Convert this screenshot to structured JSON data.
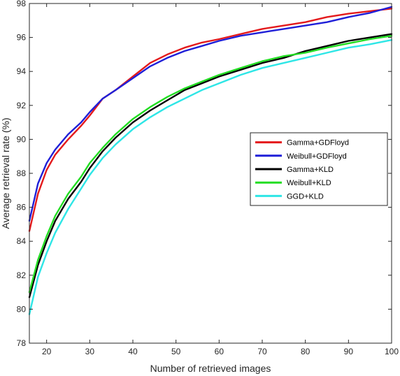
{
  "chart_data": {
    "type": "line",
    "title": "",
    "xlabel": "Number of retrieved images",
    "ylabel": "Average retrieval rate (%)",
    "xlim": [
      16,
      100
    ],
    "ylim": [
      78,
      98
    ],
    "xticks": [
      20,
      30,
      40,
      50,
      60,
      70,
      80,
      90,
      100
    ],
    "yticks": [
      78,
      80,
      82,
      84,
      86,
      88,
      90,
      92,
      94,
      96,
      98
    ],
    "grid": false,
    "legend_position": "middle-right",
    "series": [
      {
        "name": "Gamma+GDFloyd",
        "color": "#e41a1c",
        "x": [
          16,
          18,
          20,
          22,
          25,
          28,
          30,
          33,
          36,
          40,
          44,
          48,
          52,
          56,
          60,
          65,
          70,
          75,
          80,
          85,
          90,
          95,
          100
        ],
        "y": [
          84.6,
          86.8,
          88.2,
          89.1,
          90.0,
          90.8,
          91.4,
          92.4,
          92.9,
          93.7,
          94.5,
          95.0,
          95.4,
          95.7,
          95.9,
          96.2,
          96.5,
          96.7,
          96.9,
          97.2,
          97.4,
          97.55,
          97.7
        ]
      },
      {
        "name": "Weibull+GDFloyd",
        "color": "#1f1fd8",
        "x": [
          16,
          18,
          20,
          22,
          25,
          28,
          30,
          33,
          36,
          40,
          44,
          48,
          52,
          56,
          60,
          65,
          70,
          75,
          80,
          85,
          90,
          95,
          100
        ],
        "y": [
          85.2,
          87.4,
          88.6,
          89.4,
          90.3,
          91.0,
          91.6,
          92.4,
          92.9,
          93.6,
          94.3,
          94.8,
          95.2,
          95.5,
          95.8,
          96.1,
          96.3,
          96.5,
          96.7,
          96.9,
          97.2,
          97.45,
          97.8
        ]
      },
      {
        "name": "Gamma+KLD",
        "color": "#000000",
        "x": [
          16,
          18,
          20,
          22,
          25,
          28,
          30,
          33,
          36,
          40,
          44,
          48,
          52,
          56,
          60,
          65,
          70,
          75,
          80,
          85,
          90,
          95,
          100
        ],
        "y": [
          80.7,
          82.6,
          84.0,
          85.2,
          86.5,
          87.5,
          88.3,
          89.3,
          90.1,
          91.0,
          91.7,
          92.3,
          92.9,
          93.3,
          93.7,
          94.1,
          94.5,
          94.8,
          95.2,
          95.5,
          95.8,
          96.0,
          96.2
        ]
      },
      {
        "name": "Weibull+KLD",
        "color": "#22dd22",
        "x": [
          16,
          18,
          20,
          22,
          25,
          28,
          30,
          33,
          36,
          40,
          44,
          48,
          52,
          56,
          60,
          65,
          70,
          75,
          80,
          85,
          90,
          95,
          100
        ],
        "y": [
          81.0,
          82.9,
          84.3,
          85.5,
          86.8,
          87.8,
          88.6,
          89.5,
          90.3,
          91.2,
          91.9,
          92.5,
          93.0,
          93.4,
          93.8,
          94.2,
          94.6,
          94.9,
          95.1,
          95.4,
          95.65,
          95.9,
          96.1
        ]
      },
      {
        "name": "GGD+KLD",
        "color": "#2ee6e6",
        "x": [
          16,
          18,
          20,
          22,
          25,
          28,
          30,
          33,
          36,
          40,
          44,
          48,
          52,
          56,
          60,
          65,
          70,
          75,
          80,
          85,
          90,
          95,
          100
        ],
        "y": [
          79.7,
          81.9,
          83.3,
          84.5,
          85.9,
          87.1,
          87.9,
          88.9,
          89.7,
          90.6,
          91.3,
          91.9,
          92.4,
          92.9,
          93.3,
          93.8,
          94.2,
          94.5,
          94.8,
          95.1,
          95.4,
          95.6,
          95.85
        ]
      }
    ]
  }
}
